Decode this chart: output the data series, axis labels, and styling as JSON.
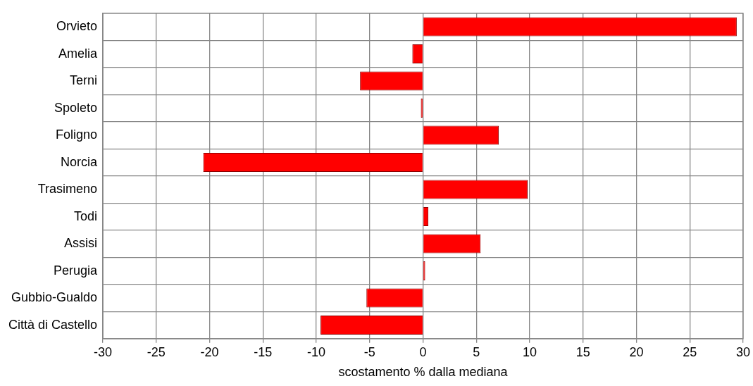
{
  "chart_data": {
    "type": "bar",
    "orientation": "horizontal",
    "xlabel": "scostamento % dalla mediana",
    "categories": [
      "Orvieto",
      "Amelia",
      "Terni",
      "Spoleto",
      "Foligno",
      "Norcia",
      "Trasimeno",
      "Todi",
      "Assisi",
      "Perugia",
      "Gubbio-Gualdo",
      "Città di Castello"
    ],
    "values": [
      29.4,
      -1.0,
      -5.9,
      -0.2,
      7.1,
      -20.6,
      9.8,
      0.5,
      5.4,
      0.2,
      -5.3,
      -9.6
    ],
    "color": "#ff0000",
    "xlim": [
      -30,
      30
    ],
    "xticks": [
      -30,
      -25,
      -20,
      -15,
      -10,
      -5,
      0,
      5,
      10,
      15,
      20,
      25,
      30
    ],
    "grid": true
  }
}
